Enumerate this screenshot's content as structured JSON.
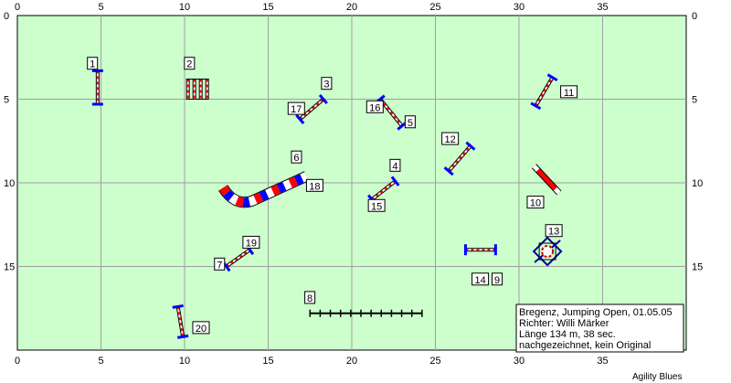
{
  "colors": {
    "field": "#ccffcc",
    "grid": "#a0a0a0",
    "pole_red": "#ff0000",
    "pole_blue": "#0000ff",
    "wing_blue": "#000099",
    "tunnel_red": "#ff0000",
    "tunnel_blue": "#0000ff",
    "contact_red": "#ff0000"
  },
  "axes": {
    "x_ticks": [
      "0",
      "5",
      "10",
      "15",
      "20",
      "25",
      "30",
      "35"
    ],
    "y_ticks": [
      "0",
      "5",
      "10",
      "15"
    ]
  },
  "obstacles": [
    {
      "type": "jump",
      "name": "jump-1",
      "x1": 4.8,
      "y1": 3.3,
      "x2": 4.8,
      "y2": 5.3
    },
    {
      "type": "jump-spread",
      "name": "spread-jump-2",
      "x": 10.2,
      "y1": 3.8,
      "y2": 5.0
    },
    {
      "type": "jump",
      "name": "jump-3",
      "x1": 16.9,
      "y1": 6.2,
      "x2": 18.3,
      "y2": 5.0
    },
    {
      "type": "jump",
      "name": "jump-4",
      "x1": 21.2,
      "y1": 11.0,
      "x2": 22.6,
      "y2": 9.9
    },
    {
      "type": "jump",
      "name": "jump-5",
      "x1": 21.7,
      "y1": 5.0,
      "x2": 23.0,
      "y2": 6.6
    },
    {
      "type": "tunnel",
      "name": "tunnel-6"
    },
    {
      "type": "jump",
      "name": "jump-7",
      "x1": 12.5,
      "y1": 15.0,
      "x2": 13.9,
      "y2": 14.0
    },
    {
      "type": "weave",
      "name": "weave-8",
      "x1": 17.5,
      "x2": 24.2,
      "y": 17.8
    },
    {
      "type": "jump",
      "name": "jump-9",
      "x1": 26.8,
      "y1": 14.0,
      "x2": 28.6,
      "y2": 14.0
    },
    {
      "type": "contact",
      "name": "contact-10",
      "x1": 30.9,
      "y1": 9.0,
      "x2": 32.4,
      "y2": 10.6
    },
    {
      "type": "jump",
      "name": "jump-11",
      "x1": 31.0,
      "y1": 5.4,
      "x2": 32.0,
      "y2": 3.7
    },
    {
      "type": "jump",
      "name": "jump-12",
      "x1": 25.8,
      "y1": 9.3,
      "x2": 27.1,
      "y2": 7.8
    },
    {
      "type": "tire",
      "name": "tire-13",
      "x": 31.7,
      "y": 14.1
    },
    {
      "type": "jump",
      "name": "jump-20",
      "x1": 9.6,
      "y1": 17.4,
      "x2": 9.9,
      "y2": 19.2
    }
  ],
  "labels": [
    {
      "text": "1",
      "x": 4.3,
      "y": 3.1
    },
    {
      "text": "2",
      "x": 10.1,
      "y": 3.1
    },
    {
      "text": "3",
      "x": 18.3,
      "y": 4.3
    },
    {
      "text": "4",
      "x": 22.4,
      "y": 9.2
    },
    {
      "text": "5",
      "x": 23.3,
      "y": 6.6
    },
    {
      "text": "6",
      "x": 16.5,
      "y": 8.7
    },
    {
      "text": "7",
      "x": 11.9,
      "y": 15.1
    },
    {
      "text": "8",
      "x": 17.3,
      "y": 17.1
    },
    {
      "text": "9",
      "x": 28.5,
      "y": 16.0
    },
    {
      "text": "10",
      "x": 30.6,
      "y": 11.4
    },
    {
      "text": "11",
      "x": 32.6,
      "y": 4.8
    },
    {
      "text": "12",
      "x": 25.5,
      "y": 7.6
    },
    {
      "text": "13",
      "x": 31.7,
      "y": 13.1
    },
    {
      "text": "14",
      "x": 27.3,
      "y": 16.0
    },
    {
      "text": "15",
      "x": 21.1,
      "y": 11.6
    },
    {
      "text": "16",
      "x": 21.0,
      "y": 5.7
    },
    {
      "text": "17",
      "x": 16.3,
      "y": 5.8
    },
    {
      "text": "18",
      "x": 17.4,
      "y": 10.4
    },
    {
      "text": "19",
      "x": 13.6,
      "y": 13.8
    },
    {
      "text": "20",
      "x": 10.6,
      "y": 18.9
    }
  ],
  "info_box": {
    "line1": "Bregenz, Jumping Open, 01.05.05",
    "line2": "Richter: Willi Märker",
    "line3": "Länge 134 m, 38 sec.",
    "line4": "nachgezeichnet, kein Original"
  },
  "credit": "Agility Blues"
}
